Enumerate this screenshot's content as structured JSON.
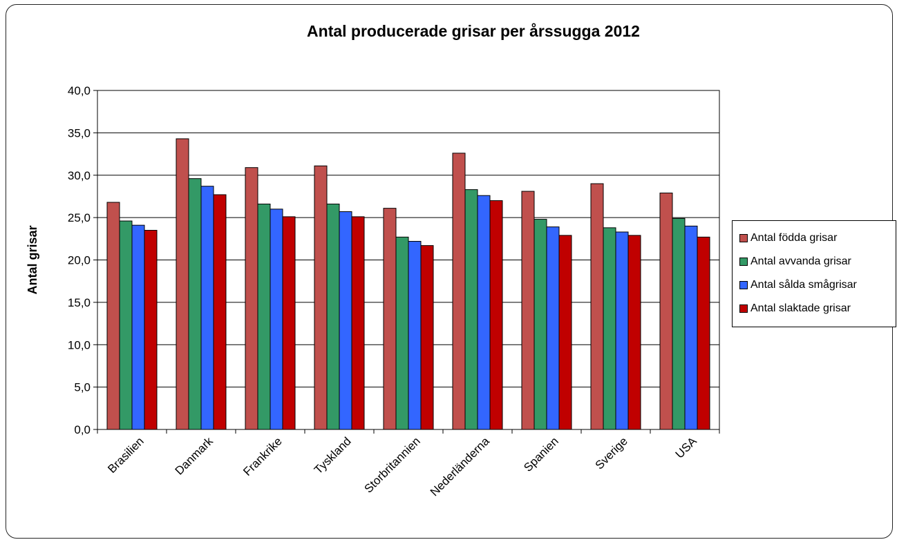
{
  "chart_data": {
    "type": "bar",
    "title": "Antal producerade grisar per årssugga 2012",
    "xlabel": "",
    "ylabel": "Antal grisar",
    "ylim": [
      0,
      40
    ],
    "yticks": [
      "0,0",
      "5,0",
      "10,0",
      "15,0",
      "20,0",
      "25,0",
      "30,0",
      "35,0",
      "40,0"
    ],
    "grid": true,
    "legend_position": "right",
    "categories": [
      "Brasilien",
      "Danmark",
      "Frankrike",
      "Tyskland",
      "Storbritannien",
      "Nederländerna",
      "Spanien",
      "Sverige",
      "USA"
    ],
    "series": [
      {
        "name": "Antal födda grisar",
        "color": "#c0504d",
        "values": [
          26.8,
          34.3,
          30.9,
          31.1,
          26.1,
          32.6,
          28.1,
          29.0,
          27.9
        ]
      },
      {
        "name": "Antal avvanda grisar",
        "color": "#339966",
        "values": [
          24.6,
          29.6,
          26.6,
          26.6,
          22.7,
          28.3,
          24.8,
          23.8,
          24.9
        ]
      },
      {
        "name": "Antal sålda smågrisar",
        "color": "#3366ff",
        "values": [
          24.1,
          28.7,
          26.0,
          25.7,
          22.2,
          27.6,
          23.9,
          23.3,
          24.0
        ]
      },
      {
        "name": "Antal slaktade grisar",
        "color": "#c00000",
        "values": [
          23.5,
          27.7,
          25.1,
          25.1,
          21.7,
          27.0,
          22.9,
          22.9,
          22.7
        ]
      }
    ]
  }
}
